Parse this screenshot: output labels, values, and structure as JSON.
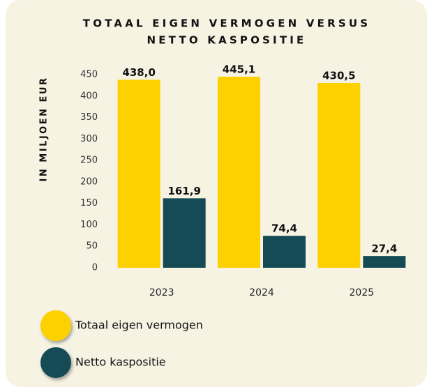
{
  "chart_data": {
    "type": "bar",
    "title": [
      "TOTAAL EIGEN VERMOGEN VERSUS",
      "NETTO KASPOSITIE"
    ],
    "y_axis_label": "IN MILJOEN EUR",
    "categories": [
      "2023",
      "2024",
      "2025"
    ],
    "series": [
      {
        "name": "Totaal eigen vermogen",
        "color": "#fdd000",
        "values": [
          438.0,
          445.1,
          430.5
        ],
        "value_labels": [
          "438,0",
          "445,1",
          "430,5"
        ]
      },
      {
        "name": "Netto kaspositie",
        "color": "#154b55",
        "values": [
          161.9,
          74.4,
          27.4
        ],
        "value_labels": [
          "161,9",
          "74,4",
          "27,4"
        ]
      }
    ],
    "ylim": [
      0,
      450
    ],
    "yticks": [
      0,
      50,
      100,
      150,
      200,
      250,
      300,
      350,
      400,
      450
    ],
    "grid": false,
    "legend": "bottom-left"
  }
}
